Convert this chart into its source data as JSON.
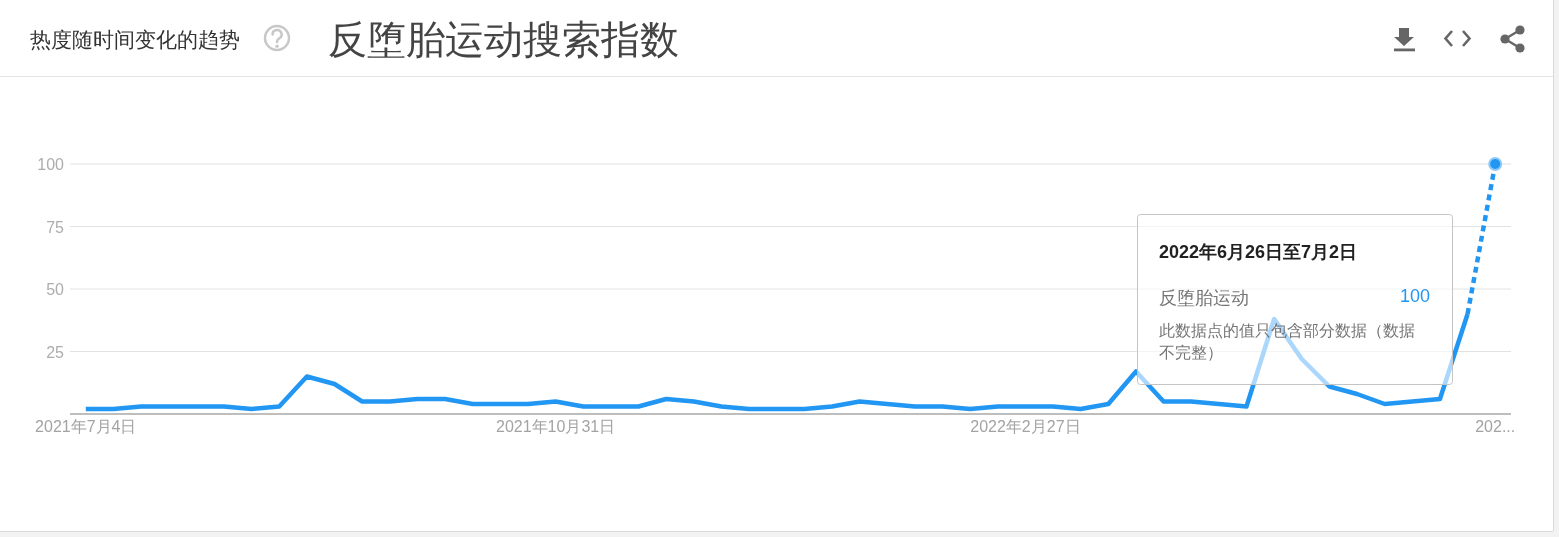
{
  "chart_data": {
    "type": "line",
    "title": "反堕胎运动搜索指数",
    "subtitle": "热度随时间变化的趋势",
    "annotations": [
      "2022年6月26日至7月2日",
      "100",
      "此数据点的值只包含部分数据（数据不完整）"
    ],
    "xlim": [
      "2021-06-30",
      "2022-06-30"
    ],
    "xticks": [
      {
        "value": "2021-07-04",
        "label": "2021年7月4日"
      },
      {
        "value": "2021-10-31",
        "label": "2021年10月31日"
      },
      {
        "value": "2022-02-27",
        "label": "2022年2月27日"
      },
      {
        "value": "2022-06-26",
        "label": "202..."
      }
    ],
    "ylim": [
      0,
      100
    ],
    "yticks": [
      25,
      50,
      75,
      100
    ],
    "grid": "y",
    "series": [
      {
        "name": "反堕胎运动",
        "color": "#2196f3",
        "x": [
          "2021-07-04",
          "2021-07-11",
          "2021-07-18",
          "2021-07-25",
          "2021-08-01",
          "2021-08-08",
          "2021-08-15",
          "2021-08-22",
          "2021-08-29",
          "2021-09-05",
          "2021-09-12",
          "2021-09-19",
          "2021-09-26",
          "2021-10-03",
          "2021-10-10",
          "2021-10-17",
          "2021-10-24",
          "2021-10-31",
          "2021-11-07",
          "2021-11-14",
          "2021-11-21",
          "2021-11-28",
          "2021-12-05",
          "2021-12-12",
          "2021-12-19",
          "2021-12-26",
          "2022-01-02",
          "2022-01-09",
          "2022-01-16",
          "2022-01-23",
          "2022-01-30",
          "2022-02-06",
          "2022-02-13",
          "2022-02-20",
          "2022-02-27",
          "2022-03-06",
          "2022-03-13",
          "2022-03-20",
          "2022-03-27",
          "2022-04-03",
          "2022-04-10",
          "2022-04-17",
          "2022-04-24",
          "2022-05-01",
          "2022-05-08",
          "2022-05-15",
          "2022-05-22",
          "2022-05-29",
          "2022-06-05",
          "2022-06-12",
          "2022-06-19"
        ],
        "values": [
          2,
          2,
          3,
          3,
          3,
          3,
          2,
          3,
          15,
          12,
          5,
          5,
          6,
          6,
          4,
          4,
          4,
          5,
          3,
          3,
          3,
          6,
          5,
          3,
          2,
          2,
          2,
          3,
          5,
          4,
          3,
          3,
          2,
          3,
          3,
          3,
          2,
          4,
          17,
          5,
          5,
          4,
          3,
          38,
          22,
          11,
          8,
          4,
          5,
          6,
          40
        ]
      },
      {
        "color": "#2196f3",
        "line_style": "dotted",
        "x": [
          "2022-06-19",
          "2022-06-26"
        ],
        "values": [
          40,
          100
        ]
      },
      {
        "type": "scatter",
        "color": "#2196f3",
        "marker": "circle",
        "x": [
          "2022-06-26"
        ],
        "values": [
          100
        ]
      }
    ]
  }
}
